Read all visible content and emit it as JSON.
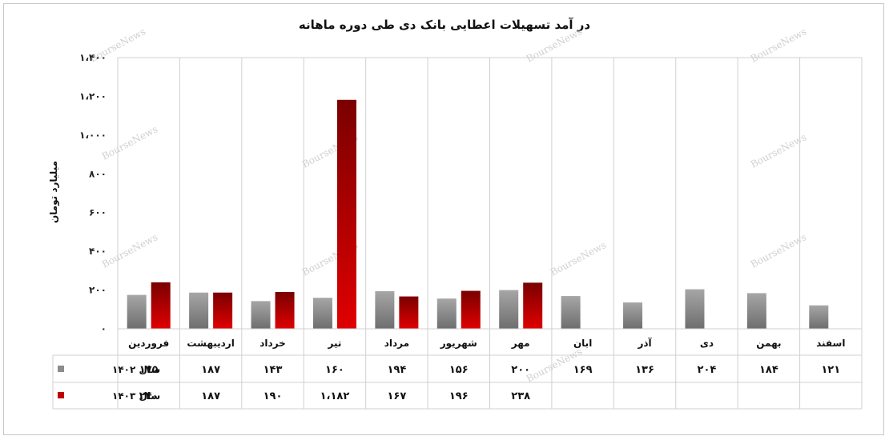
{
  "chart_data": {
    "type": "bar",
    "title": "در آمد تسهیلات اعطایی بانک دی طی دوره ماهانه",
    "ylabel": "میلیارد تومان",
    "ylim": [
      0,
      1400
    ],
    "yticks": [
      0,
      200,
      400,
      600,
      800,
      1000,
      1200,
      1400
    ],
    "ytick_labels": [
      "۰",
      "۲۰۰",
      "۴۰۰",
      "۶۰۰",
      "۸۰۰",
      "۱،۰۰۰",
      "۱،۲۰۰",
      "۱،۴۰۰"
    ],
    "categories": [
      "فروردین",
      "اردیبهشت",
      "خرداد",
      "تیر",
      "مرداد",
      "شهریور",
      "مهر",
      "ابان",
      "آذر",
      "دی",
      "بهمن",
      "اسفند"
    ],
    "series": [
      {
        "name": "سال ۱۴۰۲",
        "color": "#8c8c8c",
        "values": [
          175,
          187,
          143,
          160,
          194,
          156,
          200,
          169,
          136,
          204,
          184,
          121
        ],
        "labels": [
          "۱۷۵",
          "۱۸۷",
          "۱۴۳",
          "۱۶۰",
          "۱۹۴",
          "۱۵۶",
          "۲۰۰",
          "۱۶۹",
          "۱۳۶",
          "۲۰۴",
          "۱۸۴",
          "۱۲۱"
        ]
      },
      {
        "name": "سال ۱۴۰۳",
        "color": "#c00000",
        "values": [
          240,
          187,
          190,
          1182,
          167,
          196,
          238,
          null,
          null,
          null,
          null,
          null
        ],
        "labels": [
          "۲۴۰",
          "۱۸۷",
          "۱۹۰",
          "۱،۱۸۲",
          "۱۶۷",
          "۱۹۶",
          "۲۳۸",
          "",
          "",
          "",
          "",
          ""
        ]
      }
    ],
    "grid": true,
    "legend": "data-table",
    "watermark": "BourseNews"
  }
}
